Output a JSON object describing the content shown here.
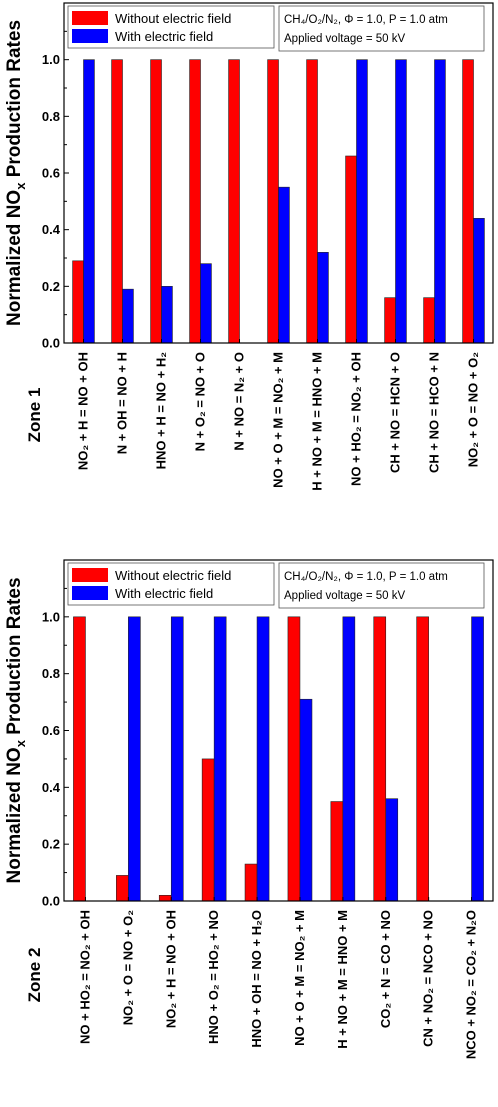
{
  "figure": {
    "ylabel": "Normalized NO",
    "ylabel_sub": "x",
    "ylabel_tail": " Production Rates",
    "legend": {
      "without": "Without electric field",
      "with": "With electric field"
    },
    "colors": {
      "without": "#ff0000",
      "with": "#0000ff"
    },
    "panels": [
      {
        "condition_line1": "CH₄/O₂/N₂, Φ = 1.0, P = 1.0 atm",
        "condition_line2": "Applied voltage = 50 kV"
      },
      {
        "condition_line1": "CH₄/O₂/N₂, Φ = 1.0, P = 1.0 atm",
        "condition_line2": "Applied voltage = 50 kV"
      }
    ]
  },
  "chart_data": [
    {
      "type": "bar",
      "title": "Zone 1",
      "xlabel": "",
      "ylabel": "Normalized NOx Production Rates",
      "ylim": [
        0,
        1.2
      ],
      "yticks": [
        "0.0",
        "0.2",
        "0.4",
        "0.6",
        "0.8",
        "1.0"
      ],
      "grid": false,
      "legend_position": "top-left",
      "categories": [
        "NO₂ + H = NO + OH",
        "N + OH = NO + H",
        "HNO + H = NO + H₂",
        "N + O₂ = NO + O",
        "N + NO = N₂ + O",
        "NO + O + M = NO₂ + M",
        "H + NO + M = HNO + M",
        "NO + HO₂ = NO₂ + OH",
        "CH + NO = HCN + O",
        "CH + NO = HCO + N",
        "NO₂ + O = NO + O₂"
      ],
      "series": [
        {
          "name": "Without electric field",
          "values": [
            0.29,
            1.0,
            1.0,
            1.0,
            1.0,
            1.0,
            1.0,
            0.66,
            0.16,
            0.16,
            1.0
          ]
        },
        {
          "name": "With electric field",
          "values": [
            1.0,
            0.19,
            0.2,
            0.28,
            0.0,
            0.55,
            0.32,
            1.0,
            1.0,
            1.0,
            0.44
          ]
        }
      ]
    },
    {
      "type": "bar",
      "title": "Zone 2",
      "xlabel": "",
      "ylabel": "Normalized NOx Production Rates",
      "ylim": [
        0,
        1.2
      ],
      "yticks": [
        "0.0",
        "0.2",
        "0.4",
        "0.6",
        "0.8",
        "1.0"
      ],
      "grid": false,
      "legend_position": "top-left",
      "categories": [
        "NO + HO₂ = NO₂ + OH",
        "NO₂ + O = NO + O₂",
        "NO₂ + H = NO + OH",
        "HNO + O₂ = HO₂ + NO",
        "HNO + OH = NO + H₂O",
        "NO + O + M = NO₂ + M",
        "H + NO + M = HNO + M",
        "CO₂ + N = CO + NO",
        "CN + NO₂ = NCO + NO",
        "NCO + NO₂ = CO₂ + N₂O"
      ],
      "series": [
        {
          "name": "Without electric field",
          "values": [
            1.0,
            0.09,
            0.02,
            0.5,
            0.13,
            1.0,
            0.35,
            1.0,
            1.0,
            0.0
          ]
        },
        {
          "name": "With electric field",
          "values": [
            0.0,
            1.0,
            1.0,
            1.0,
            1.0,
            0.71,
            1.0,
            0.36,
            0.0,
            1.0
          ]
        }
      ]
    }
  ]
}
